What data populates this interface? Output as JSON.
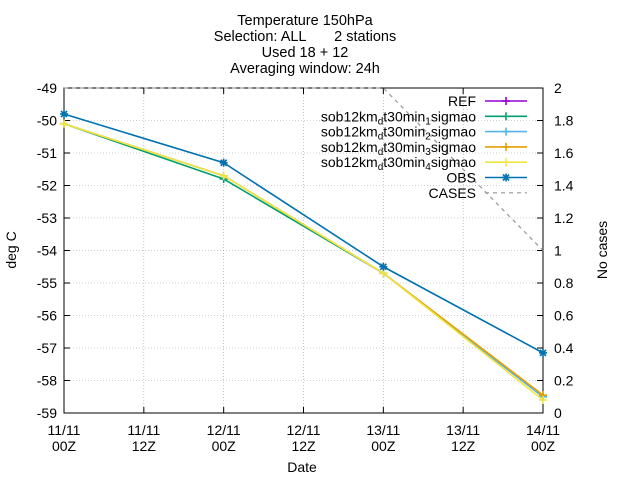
{
  "chart_data": {
    "type": "line",
    "title_lines": [
      "Temperature 150hPa",
      "Selection: ALL       2 stations",
      "Used 18 + 12",
      "Averaging window: 24h"
    ],
    "xlabel": "Date",
    "ylabel": "deg C",
    "y2label": "No cases",
    "x_ticks": [
      {
        "x": 0,
        "line1": "11/11",
        "line2": "00Z"
      },
      {
        "x": 12,
        "line1": "11/11",
        "line2": "12Z"
      },
      {
        "x": 24,
        "line1": "12/11",
        "line2": "00Z"
      },
      {
        "x": 36,
        "line1": "12/11",
        "line2": "12Z"
      },
      {
        "x": 48,
        "line1": "13/11",
        "line2": "00Z"
      },
      {
        "x": 60,
        "line1": "13/11",
        "line2": "12Z"
      },
      {
        "x": 72,
        "line1": "14/11",
        "line2": "00Z"
      }
    ],
    "xlim": [
      0,
      72
    ],
    "ylim": [
      -59,
      -49
    ],
    "y_ticks": [
      -49,
      -50,
      -51,
      -52,
      -53,
      -54,
      -55,
      -56,
      -57,
      -58,
      -59
    ],
    "y2lim": [
      0,
      2
    ],
    "y2_ticks": [
      "2",
      "1.8",
      "1.6",
      "1.4",
      "1.2",
      "1",
      "0.8",
      "0.6",
      "0.4",
      "0.2",
      "0"
    ],
    "grid": true,
    "legend_position": "top-right",
    "series": [
      {
        "name": "REF",
        "color": "#9400d3",
        "marker": "plus",
        "axis": "y",
        "points": []
      },
      {
        "name": "sob12km_d t30min_1 sigmao",
        "label_parts": [
          "sob12km",
          "d",
          "t30min",
          "1",
          "sigmao"
        ],
        "color": "#009e73",
        "marker": "plus",
        "axis": "y",
        "points": [
          [
            0,
            -50.1
          ],
          [
            24,
            -51.8
          ],
          [
            48,
            -54.7
          ],
          [
            72,
            -58.5
          ]
        ]
      },
      {
        "name": "sob12km_d t30min_2 sigmao",
        "label_parts": [
          "sob12km",
          "d",
          "t30min",
          "2",
          "sigmao"
        ],
        "color": "#56b4e9",
        "marker": "plus",
        "axis": "y",
        "points": [
          [
            0,
            -50.1
          ],
          [
            24,
            -51.7
          ],
          [
            48,
            -54.7
          ],
          [
            72,
            -58.5
          ]
        ]
      },
      {
        "name": "sob12km_d t30min_3 sigmao",
        "label_parts": [
          "sob12km",
          "d",
          "t30min",
          "3",
          "sigmao"
        ],
        "color": "#e69f00",
        "marker": "plus",
        "axis": "y",
        "points": [
          [
            0,
            -50.1
          ],
          [
            24,
            -51.7
          ],
          [
            48,
            -54.7
          ],
          [
            72,
            -58.45
          ]
        ]
      },
      {
        "name": "sob12km_d t30min_4 sigmao",
        "label_parts": [
          "sob12km",
          "d",
          "t30min",
          "4",
          "sigmao"
        ],
        "color": "#f0e442",
        "marker": "plus",
        "axis": "y",
        "points": [
          [
            0,
            -50.1
          ],
          [
            24,
            -51.7
          ],
          [
            48,
            -54.7
          ],
          [
            72,
            -58.6
          ]
        ]
      },
      {
        "name": "OBS",
        "color": "#0072b2",
        "marker": "star",
        "axis": "y",
        "points": [
          [
            0,
            -49.8
          ],
          [
            24,
            -51.3
          ],
          [
            48,
            -54.5
          ],
          [
            72,
            -57.15
          ]
        ]
      },
      {
        "name": "CASES",
        "color": "#999999",
        "dashed": true,
        "axis": "y2",
        "points": [
          [
            0,
            2
          ],
          [
            48,
            2
          ],
          [
            72,
            1
          ]
        ]
      }
    ]
  }
}
